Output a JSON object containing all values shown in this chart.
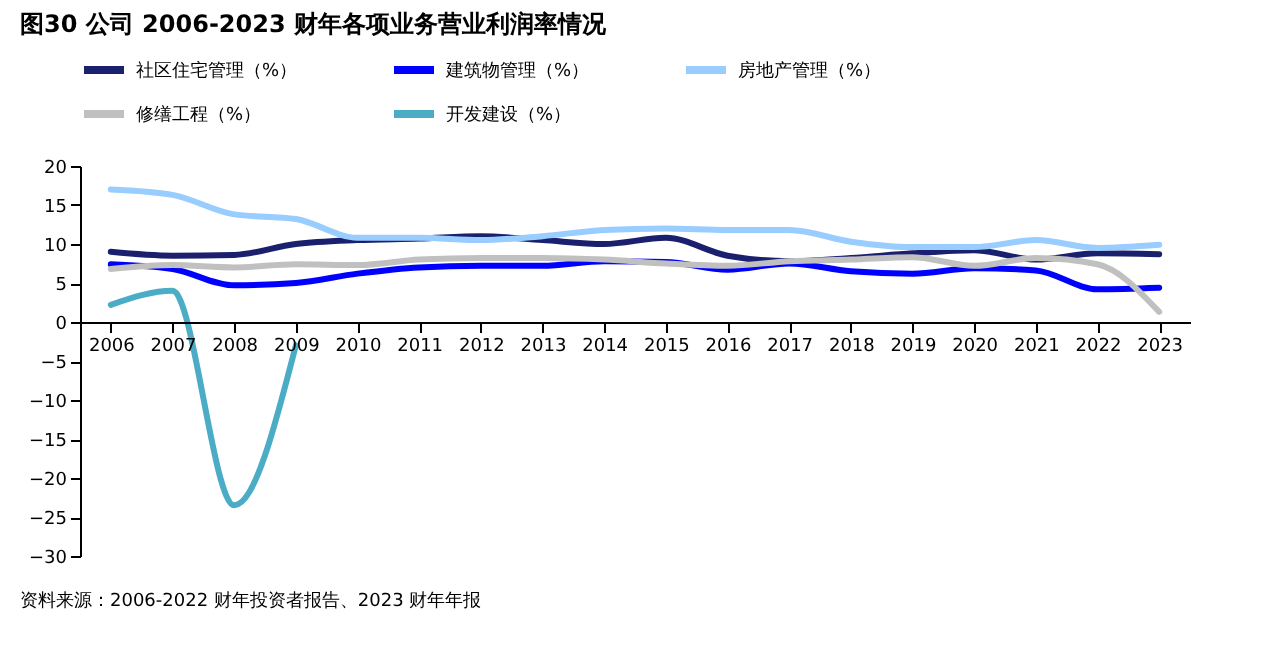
{
  "chart_data": {
    "type": "line",
    "title": "图30 公司 2006-2023 财年各项业务营业利润率情况",
    "categories": [
      "2006",
      "2007",
      "2008",
      "2009",
      "2010",
      "2011",
      "2012",
      "2013",
      "2014",
      "2015",
      "2016",
      "2017",
      "2018",
      "2019",
      "2020",
      "2021",
      "2022",
      "2023"
    ],
    "series": [
      {
        "name": "社区住宅管理（%）",
        "color": "#1a1f6e",
        "values": [
          9,
          8.5,
          8.6,
          10,
          10.5,
          10.7,
          11,
          10.5,
          10,
          10.8,
          8.5,
          7.8,
          8.2,
          8.8,
          9.2,
          8.0,
          8.8,
          8.7
        ]
      },
      {
        "name": "建筑物管理（%）",
        "color": "#0000ff",
        "values": [
          7.4,
          6.8,
          4.7,
          5.0,
          6.2,
          7.0,
          7.2,
          7.2,
          7.8,
          7.7,
          6.7,
          7.5,
          6.5,
          6.2,
          6.9,
          6.6,
          4.2,
          4.4
        ]
      },
      {
        "name": "房地产管理（%）",
        "color": "#99ccff",
        "values": [
          17,
          16.3,
          13.8,
          13.2,
          10.8,
          10.8,
          10.5,
          11.0,
          11.8,
          12.0,
          11.8,
          11.8,
          10.3,
          9.6,
          9.6,
          10.5,
          9.5,
          9.9
        ]
      },
      {
        "name": "修缮工程（%）",
        "color": "#c0c0c0",
        "values": [
          6.8,
          7.3,
          7.0,
          7.4,
          7.3,
          8.0,
          8.2,
          8.2,
          8.0,
          7.5,
          7.2,
          7.8,
          8.0,
          8.3,
          7.2,
          8.2,
          7.4,
          1.3
        ]
      },
      {
        "name": "开发建设（%）",
        "color": "#4bacc6",
        "values": [
          2.2,
          4.0,
          -23.5,
          -3,
          null,
          null,
          null,
          null,
          null,
          null,
          null,
          null,
          null,
          null,
          null,
          null,
          null,
          null
        ]
      }
    ],
    "ylim": [
      -30,
      20
    ],
    "yticks": [
      -30,
      -25,
      -20,
      -15,
      -10,
      -5,
      0,
      5,
      10,
      15,
      20
    ],
    "grid": false,
    "legend": "top",
    "marker": "none",
    "line_style": "solid",
    "annotations": [
      "资料来源：2006-2022 财年投资者报告、2023 财年年报"
    ]
  }
}
